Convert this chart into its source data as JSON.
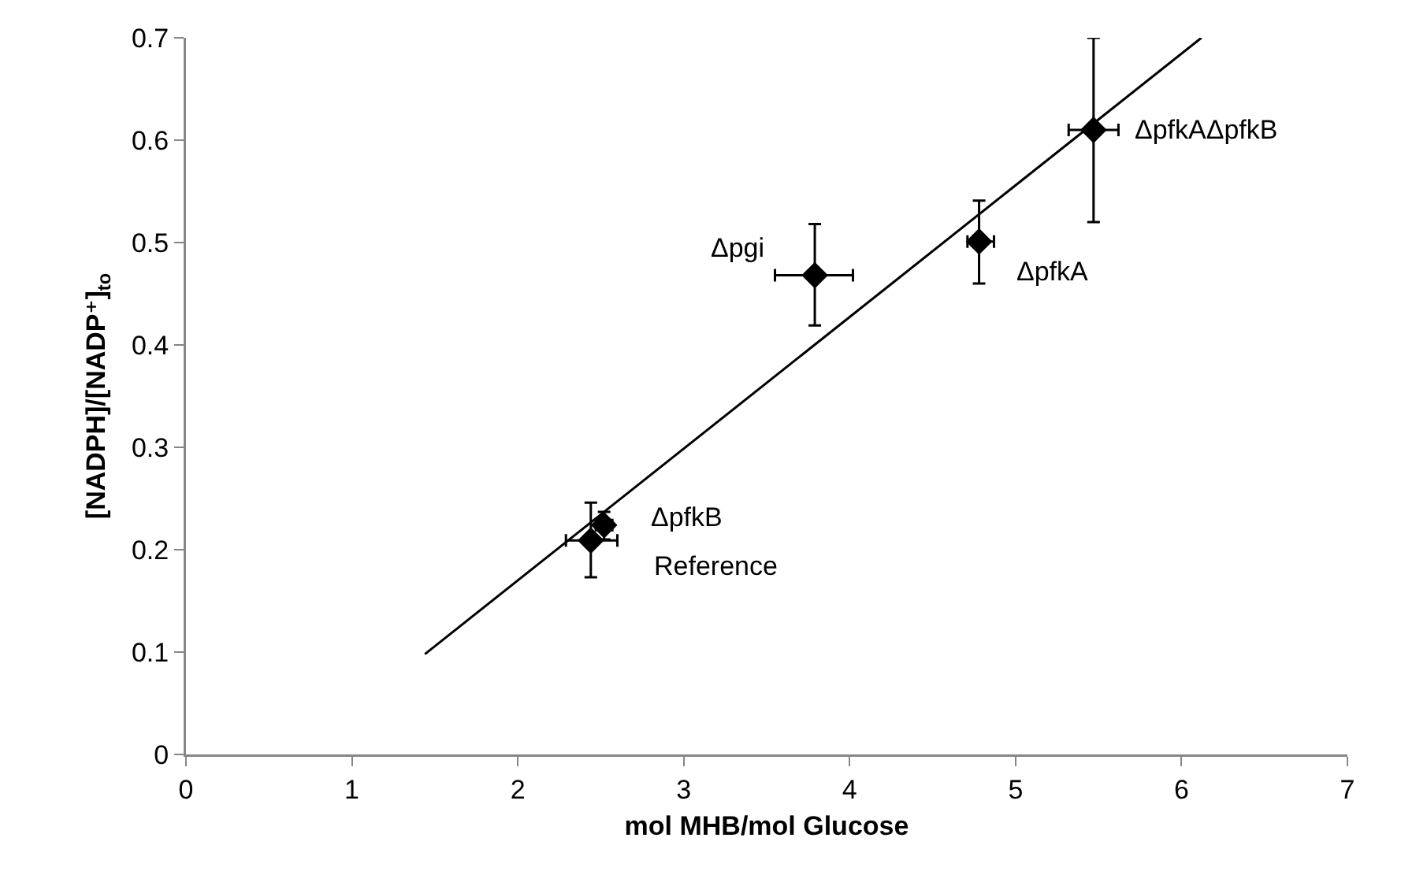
{
  "chart_data": {
    "type": "scatter",
    "xlabel": "mol MHB/mol Glucose",
    "ylabel": "[NADPH]/[NADP⁺]$_{to}$",
    "xlim": [
      0,
      7
    ],
    "xticks": [
      0,
      1,
      2,
      3,
      4,
      5,
      6,
      7
    ],
    "ylim": [
      0,
      0.7
    ],
    "yticks": [
      0,
      0.1,
      0.2,
      0.3,
      0.4,
      0.5,
      0.6,
      0.7
    ],
    "grid": false,
    "series": [
      {
        "color": "#000000",
        "marker": "diamond",
        "x": [
          2.44,
          2.52,
          3.79,
          4.78,
          5.47
        ],
        "values": [
          0.209,
          0.224,
          0.468,
          0.501,
          0.61
        ],
        "errors": [
          [
            0.173,
            0.246
          ],
          [
            0.21,
            0.237
          ],
          [
            0.419,
            0.518
          ],
          [
            0.46,
            0.541
          ],
          [
            0.52,
            0.7
          ]
        ],
        "xerrors": [
          [
            2.29,
            2.6
          ],
          [
            2.47,
            2.57
          ],
          [
            3.55,
            4.02
          ],
          [
            4.71,
            4.87
          ],
          [
            5.32,
            5.62
          ]
        ]
      },
      {
        "type": "line",
        "color": "#000000",
        "x": [
          1.44,
          6.12
        ],
        "values": [
          0.098,
          0.7
        ]
      }
    ],
    "annotations": [
      {
        "text": "Δpgi",
        "x": 3.79,
        "y": 0.468
      },
      {
        "text": "ΔpfkB",
        "x": 2.52,
        "y": 0.224
      },
      {
        "text": "Reference",
        "x": 2.44,
        "y": 0.209
      },
      {
        "text": "ΔpfkA",
        "x": 4.78,
        "y": 0.501
      },
      {
        "text": "ΔpfkAΔpfkB",
        "x": 5.47,
        "y": 0.61
      }
    ]
  }
}
